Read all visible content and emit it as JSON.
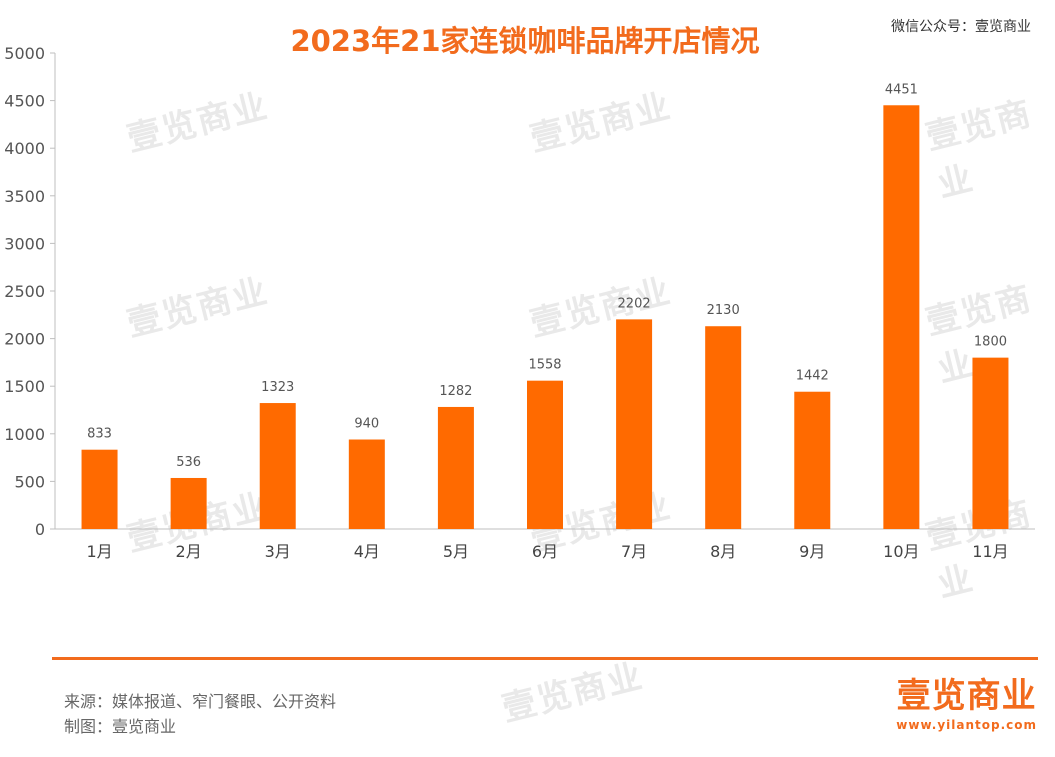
{
  "chart_data": {
    "type": "bar",
    "title": "2023年21家连锁咖啡品牌开店情况",
    "categories": [
      "1月",
      "2月",
      "3月",
      "4月",
      "5月",
      "6月",
      "7月",
      "8月",
      "9月",
      "10月",
      "11月"
    ],
    "values": [
      833,
      536,
      1323,
      940,
      1282,
      1558,
      2202,
      2130,
      1442,
      4451,
      1800
    ],
    "ylim": [
      0,
      5000
    ],
    "yticks": [
      0,
      500,
      1000,
      1500,
      2000,
      2500,
      3000,
      3500,
      4000,
      4500,
      5000
    ],
    "xlabel": "",
    "ylabel": "",
    "grid": false,
    "bar_color": "#ff6a00",
    "data_labels": true
  },
  "header": {
    "wechat": "微信公众号：壹览商业"
  },
  "watermark": "壹览商业",
  "footer": {
    "source": "来源：媒体报道、窄门餐眼、公开资料",
    "made_by": "制图：壹览商业"
  },
  "logo": {
    "name": "壹览商业",
    "url": "www.yilantop.com"
  },
  "colors": {
    "accent": "#f26b1d",
    "bar": "#ff6a00"
  }
}
